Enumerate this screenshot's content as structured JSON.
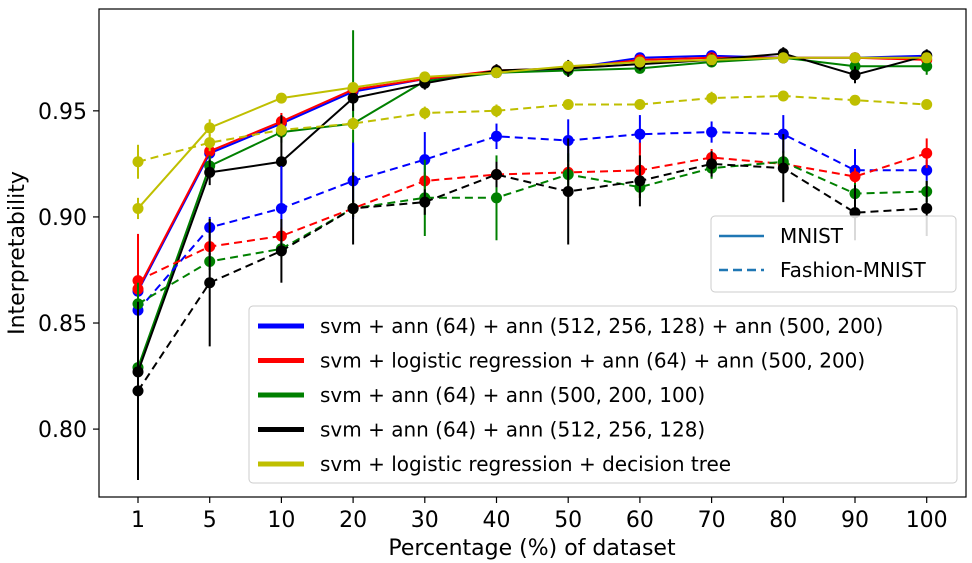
{
  "chart_data": {
    "type": "line",
    "xlabel": "Percentage (%) of dataset",
    "ylabel": "Interpretability",
    "categories": [
      "1",
      "5",
      "10",
      "20",
      "30",
      "40",
      "50",
      "60",
      "70",
      "80",
      "90",
      "100"
    ],
    "ylim": [
      0.768,
      0.998
    ],
    "yticks": [
      "0.80",
      "0.85",
      "0.90",
      "0.95"
    ],
    "ytick_values": [
      0.8,
      0.85,
      0.9,
      0.95
    ],
    "grid": false,
    "style_legend": {
      "placement": "right",
      "entries": [
        {
          "label": "MNIST",
          "dash": "solid",
          "color": "#1f77b4"
        },
        {
          "label": "Fashion-MNIST",
          "dash": "dashed",
          "color": "#1f77b4"
        }
      ]
    },
    "model_legend": {
      "placement": "lower-right",
      "entries": [
        {
          "label": "svm + ann (64) + ann (512, 256, 128) + ann (500, 200)",
          "color": "#0000ff"
        },
        {
          "label": "svm + logistic regression + ann (64) + ann (500, 200)",
          "color": "#ff0000"
        },
        {
          "label": "svm + ann (64) + ann (500, 200, 100)",
          "color": "#008000"
        },
        {
          "label": "svm + ann (64) + ann (512, 256, 128)",
          "color": "#000000"
        },
        {
          "label": "svm + logistic regression + decision tree",
          "color": "#bfbf00"
        }
      ]
    },
    "series": [
      {
        "name": "svm + ann (64) + ann (512, 256, 128) + ann (500, 200) — MNIST",
        "color": "#0000ff",
        "dash": "solid",
        "values": [
          0.865,
          0.93,
          0.944,
          0.959,
          0.965,
          0.968,
          0.97,
          0.975,
          0.976,
          0.975,
          0.975,
          0.976
        ],
        "errors": [
          0.006,
          0.004,
          0.004,
          0.003,
          0.002,
          0.002,
          0.002,
          0.002,
          0.002,
          0.002,
          0.002,
          0.002
        ]
      },
      {
        "name": "svm + logistic regression + ann (64) + ann (500, 200) — MNIST",
        "color": "#ff0000",
        "dash": "solid",
        "values": [
          0.866,
          0.931,
          0.945,
          0.96,
          0.965,
          0.969,
          0.97,
          0.974,
          0.975,
          0.975,
          0.975,
          0.974
        ],
        "errors": [
          0.006,
          0.004,
          0.004,
          0.003,
          0.002,
          0.002,
          0.002,
          0.002,
          0.002,
          0.002,
          0.002,
          0.002
        ]
      },
      {
        "name": "svm + ann (64) + ann (500, 200, 100) — MNIST",
        "color": "#008000",
        "dash": "solid",
        "values": [
          0.829,
          0.924,
          0.94,
          0.944,
          0.964,
          0.968,
          0.969,
          0.97,
          0.973,
          0.975,
          0.971,
          0.971
        ],
        "errors": [
          0.01,
          0.005,
          0.005,
          0.044,
          0.003,
          0.002,
          0.002,
          0.002,
          0.002,
          0.002,
          0.003,
          0.004
        ]
      },
      {
        "name": "svm + ann (64) + ann (512, 256, 128) — MNIST",
        "color": "#000000",
        "dash": "solid",
        "values": [
          0.827,
          0.921,
          0.926,
          0.956,
          0.963,
          0.969,
          0.97,
          0.972,
          0.974,
          0.977,
          0.967,
          0.976
        ],
        "errors": [
          0.01,
          0.006,
          0.022,
          0.006,
          0.003,
          0.003,
          0.004,
          0.003,
          0.003,
          0.003,
          0.004,
          0.003
        ]
      },
      {
        "name": "svm + logistic regression + decision tree — MNIST",
        "color": "#bfbf00",
        "dash": "solid",
        "values": [
          0.904,
          0.942,
          0.956,
          0.961,
          0.966,
          0.968,
          0.971,
          0.973,
          0.974,
          0.975,
          0.975,
          0.975
        ],
        "errors": [
          0.005,
          0.004,
          0.002,
          0.002,
          0.002,
          0.002,
          0.002,
          0.002,
          0.002,
          0.002,
          0.002,
          0.002
        ]
      },
      {
        "name": "svm + ann (64) + ann (512, 256, 128) + ann (500, 200) — Fashion-MNIST",
        "color": "#0000ff",
        "dash": "dashed",
        "values": [
          0.856,
          0.895,
          0.904,
          0.917,
          0.927,
          0.938,
          0.936,
          0.939,
          0.94,
          0.939,
          0.922,
          0.922
        ],
        "errors": [
          0.004,
          0.005,
          0.02,
          0.018,
          0.013,
          0.006,
          0.01,
          0.009,
          0.005,
          0.009,
          0.01,
          0.005
        ]
      },
      {
        "name": "svm + logistic regression + ann (64) + ann (500, 200) — Fashion-MNIST",
        "color": "#ff0000",
        "dash": "dashed",
        "values": [
          0.87,
          0.886,
          0.891,
          0.904,
          0.917,
          0.92,
          0.921,
          0.922,
          0.928,
          0.925,
          0.919,
          0.93
        ],
        "errors": [
          0.022,
          0.004,
          0.004,
          0.004,
          0.004,
          0.004,
          0.004,
          0.013,
          0.004,
          0.004,
          0.004,
          0.007
        ]
      },
      {
        "name": "svm + ann (64) + ann (500, 200, 100) — Fashion-MNIST",
        "color": "#008000",
        "dash": "dashed",
        "values": [
          0.859,
          0.879,
          0.885,
          0.904,
          0.909,
          0.909,
          0.92,
          0.914,
          0.923,
          0.926,
          0.911,
          0.912
        ],
        "errors": [
          0.01,
          0.004,
          0.004,
          0.004,
          0.018,
          0.02,
          0.01,
          0.005,
          0.005,
          0.005,
          0.005,
          0.005
        ]
      },
      {
        "name": "svm + ann (64) + ann (512, 256, 128) — Fashion-MNIST",
        "color": "#000000",
        "dash": "dashed",
        "values": [
          0.818,
          0.869,
          0.884,
          0.904,
          0.907,
          0.92,
          0.912,
          0.917,
          0.925,
          0.923,
          0.902,
          0.904
        ],
        "errors": [
          0.042,
          0.03,
          0.015,
          0.017,
          0.006,
          0.006,
          0.025,
          0.012,
          0.006,
          0.016,
          0.013,
          0.013
        ]
      },
      {
        "name": "svm + logistic regression + decision tree — Fashion-MNIST",
        "color": "#bfbf00",
        "dash": "dashed",
        "values": [
          0.926,
          0.935,
          0.941,
          0.944,
          0.949,
          0.95,
          0.953,
          0.953,
          0.956,
          0.957,
          0.955,
          0.953
        ],
        "errors": [
          0.008,
          0.004,
          0.003,
          0.003,
          0.003,
          0.003,
          0.002,
          0.002,
          0.003,
          0.002,
          0.002,
          0.002
        ]
      }
    ]
  }
}
